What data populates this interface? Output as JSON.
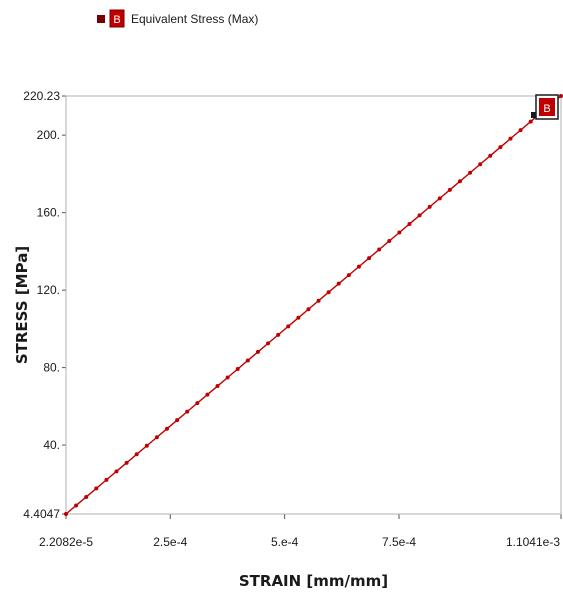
{
  "chart_data": {
    "type": "line",
    "title": "",
    "xlabel": "STRAIN [mm/mm]",
    "ylabel": "STRESS [MPa]",
    "xlim": [
      2.2082e-05,
      0.0011041
    ],
    "ylim": [
      4.4047,
      220.23
    ],
    "x_ticks": [
      {
        "value": 2.2082e-05,
        "label": "2.2082e-5"
      },
      {
        "value": 0.00025,
        "label": "2.5e-4"
      },
      {
        "value": 0.0005,
        "label": "5.e-4"
      },
      {
        "value": 0.00075,
        "label": "7.5e-4"
      },
      {
        "value": 0.0011041,
        "label": "1.1041e-3"
      }
    ],
    "y_ticks": [
      {
        "value": 4.4047,
        "label": "4.4047"
      },
      {
        "value": 40,
        "label": "40."
      },
      {
        "value": 80,
        "label": "80."
      },
      {
        "value": 120,
        "label": "120."
      },
      {
        "value": 160,
        "label": "160."
      },
      {
        "value": 200,
        "label": "200."
      },
      {
        "value": 220.23,
        "label": "220.23"
      }
    ],
    "legend_position": "top-left",
    "grid": false,
    "series": [
      {
        "name": "Equivalent Stress (Max)",
        "marker": "B",
        "color": "#c00000",
        "x": [
          2.2082e-05,
          4.4164e-05,
          6.6246e-05,
          8.8328e-05,
          0.00011041,
          0.000132492,
          0.000154574,
          0.000176656,
          0.000198738,
          0.00022082,
          0.000242902,
          0.000264984,
          0.000287066,
          0.000309148,
          0.00033123,
          0.000353312,
          0.000375394,
          0.000397476,
          0.000419558,
          0.00044164,
          0.000463722,
          0.000485804,
          0.000507886,
          0.000529968,
          0.00055205,
          0.000574132,
          0.000596214,
          0.000618296,
          0.000640378,
          0.00066246,
          0.000684542,
          0.000706624,
          0.000728706,
          0.000750788,
          0.00077287,
          0.000794952,
          0.000817034,
          0.000839116,
          0.000861198,
          0.00088328,
          0.000905362,
          0.000927444,
          0.000949526,
          0.000971608,
          0.00099369,
          0.001015772,
          0.001037854,
          0.001059936,
          0.001082018,
          0.0011041
        ],
        "values": [
          4.4047,
          8.8094,
          13.2141,
          17.6188,
          22.0235,
          26.4282,
          30.8329,
          35.2376,
          39.6423,
          44.047,
          48.4517,
          52.8564,
          57.2611,
          61.6658,
          66.0705,
          70.4752,
          74.8799,
          79.2846,
          83.6893,
          88.094,
          92.4987,
          96.9034,
          101.308,
          105.713,
          110.118,
          114.522,
          118.927,
          123.332,
          127.736,
          132.141,
          136.546,
          140.95,
          145.355,
          149.76,
          154.164,
          158.569,
          162.974,
          167.378,
          171.783,
          176.188,
          180.592,
          184.997,
          189.402,
          193.806,
          198.211,
          202.616,
          207.02,
          211.425,
          215.83,
          220.23
        ]
      }
    ]
  }
}
